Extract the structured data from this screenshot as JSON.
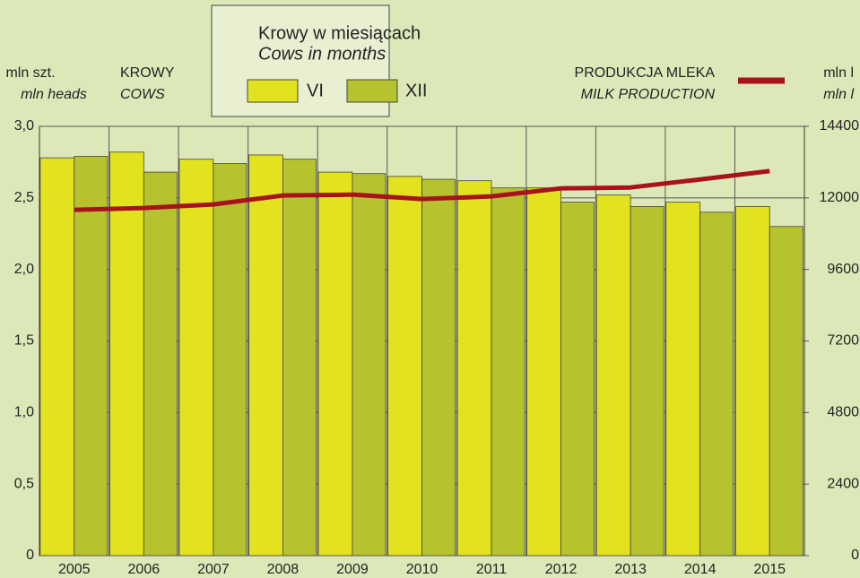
{
  "chart_data": {
    "type": "bar",
    "legend_title": "Krowy w miesiącach",
    "legend_title_en": "Cows in months",
    "y_unit": "mln szt.",
    "y_unit_en": "mln heads",
    "y_label": "KROWY",
    "y_label_en": "COWS",
    "y2_label": "PRODUKCJA MLEKA",
    "y2_label_en": "MILK PRODUCTION",
    "y2_unit": "mln l",
    "y2_unit_en": "mln l",
    "categories": [
      "2005",
      "2006",
      "2007",
      "2008",
      "2009",
      "2010",
      "2011",
      "2012",
      "2013",
      "2014",
      "2015"
    ],
    "series": [
      {
        "name": "VI",
        "color": "#e2e21e",
        "values": [
          2.78,
          2.82,
          2.77,
          2.8,
          2.68,
          2.65,
          2.62,
          2.57,
          2.52,
          2.47,
          2.44
        ]
      },
      {
        "name": "XII",
        "color": "#b7c32e",
        "values": [
          2.79,
          2.68,
          2.74,
          2.77,
          2.67,
          2.63,
          2.57,
          2.47,
          2.44,
          2.4,
          2.3
        ]
      },
      {
        "name": "PRODUKCJA MLEKA",
        "type": "line",
        "axis": "y2",
        "color": "#a8121c",
        "values": [
          11600,
          11660,
          11780,
          12080,
          12110,
          11960,
          12050,
          12320,
          12350,
          12620,
          12900
        ]
      }
    ],
    "ylim": [
      0,
      3
    ],
    "yticks": [
      0,
      {
        "value": 0.5,
        "label": "0,5"
      },
      {
        "value": 1,
        "label": "1,0"
      },
      {
        "value": 1.5,
        "label": "1,5"
      },
      {
        "value": 2,
        "label": "2,0"
      },
      {
        "value": 2.5,
        "label": "2,5"
      },
      {
        "value": 3,
        "label": "3,0"
      }
    ],
    "y2lim": [
      0,
      14400
    ],
    "y2ticks": [
      0,
      2400,
      4800,
      7200,
      9600,
      12000,
      14400
    ],
    "grid": true
  }
}
